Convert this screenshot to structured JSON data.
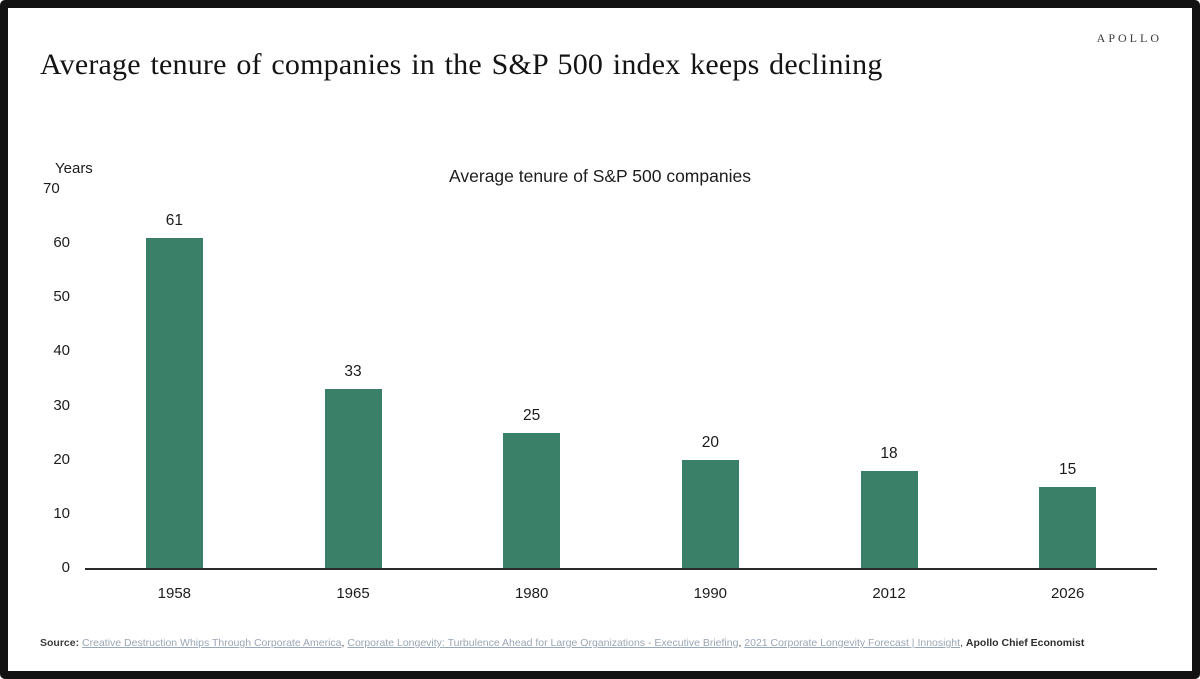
{
  "brand": {
    "logo": "APOLLO"
  },
  "header": {
    "title": "Average tenure of companies in the S&P 500 index keeps declining"
  },
  "chart_data": {
    "type": "bar",
    "title": "Average tenure of S&P 500 companies",
    "ylabel": "Years",
    "xlabel": "",
    "categories": [
      "1958",
      "1965",
      "1980",
      "1990",
      "2012",
      "2026"
    ],
    "values": [
      61,
      33,
      25,
      20,
      18,
      15
    ],
    "ylim": [
      0,
      70
    ],
    "yticks": [
      70,
      60,
      50,
      40,
      30,
      20,
      10,
      0
    ],
    "grid": false,
    "legend": false,
    "value_labels": true,
    "bar_color": "#3A8069"
  },
  "source": {
    "prefix": "Source:",
    "links": [
      "Creative Destruction Whips Through Corporate America",
      "Corporate Longevity: Turbulence Ahead for Large Organizations - Executive Briefing",
      "2021 Corporate Longevity Forecast | Innosight"
    ],
    "separator": ", ",
    "suffix": "Apollo Chief Economist",
    "link_color": "#9aa7b6"
  }
}
